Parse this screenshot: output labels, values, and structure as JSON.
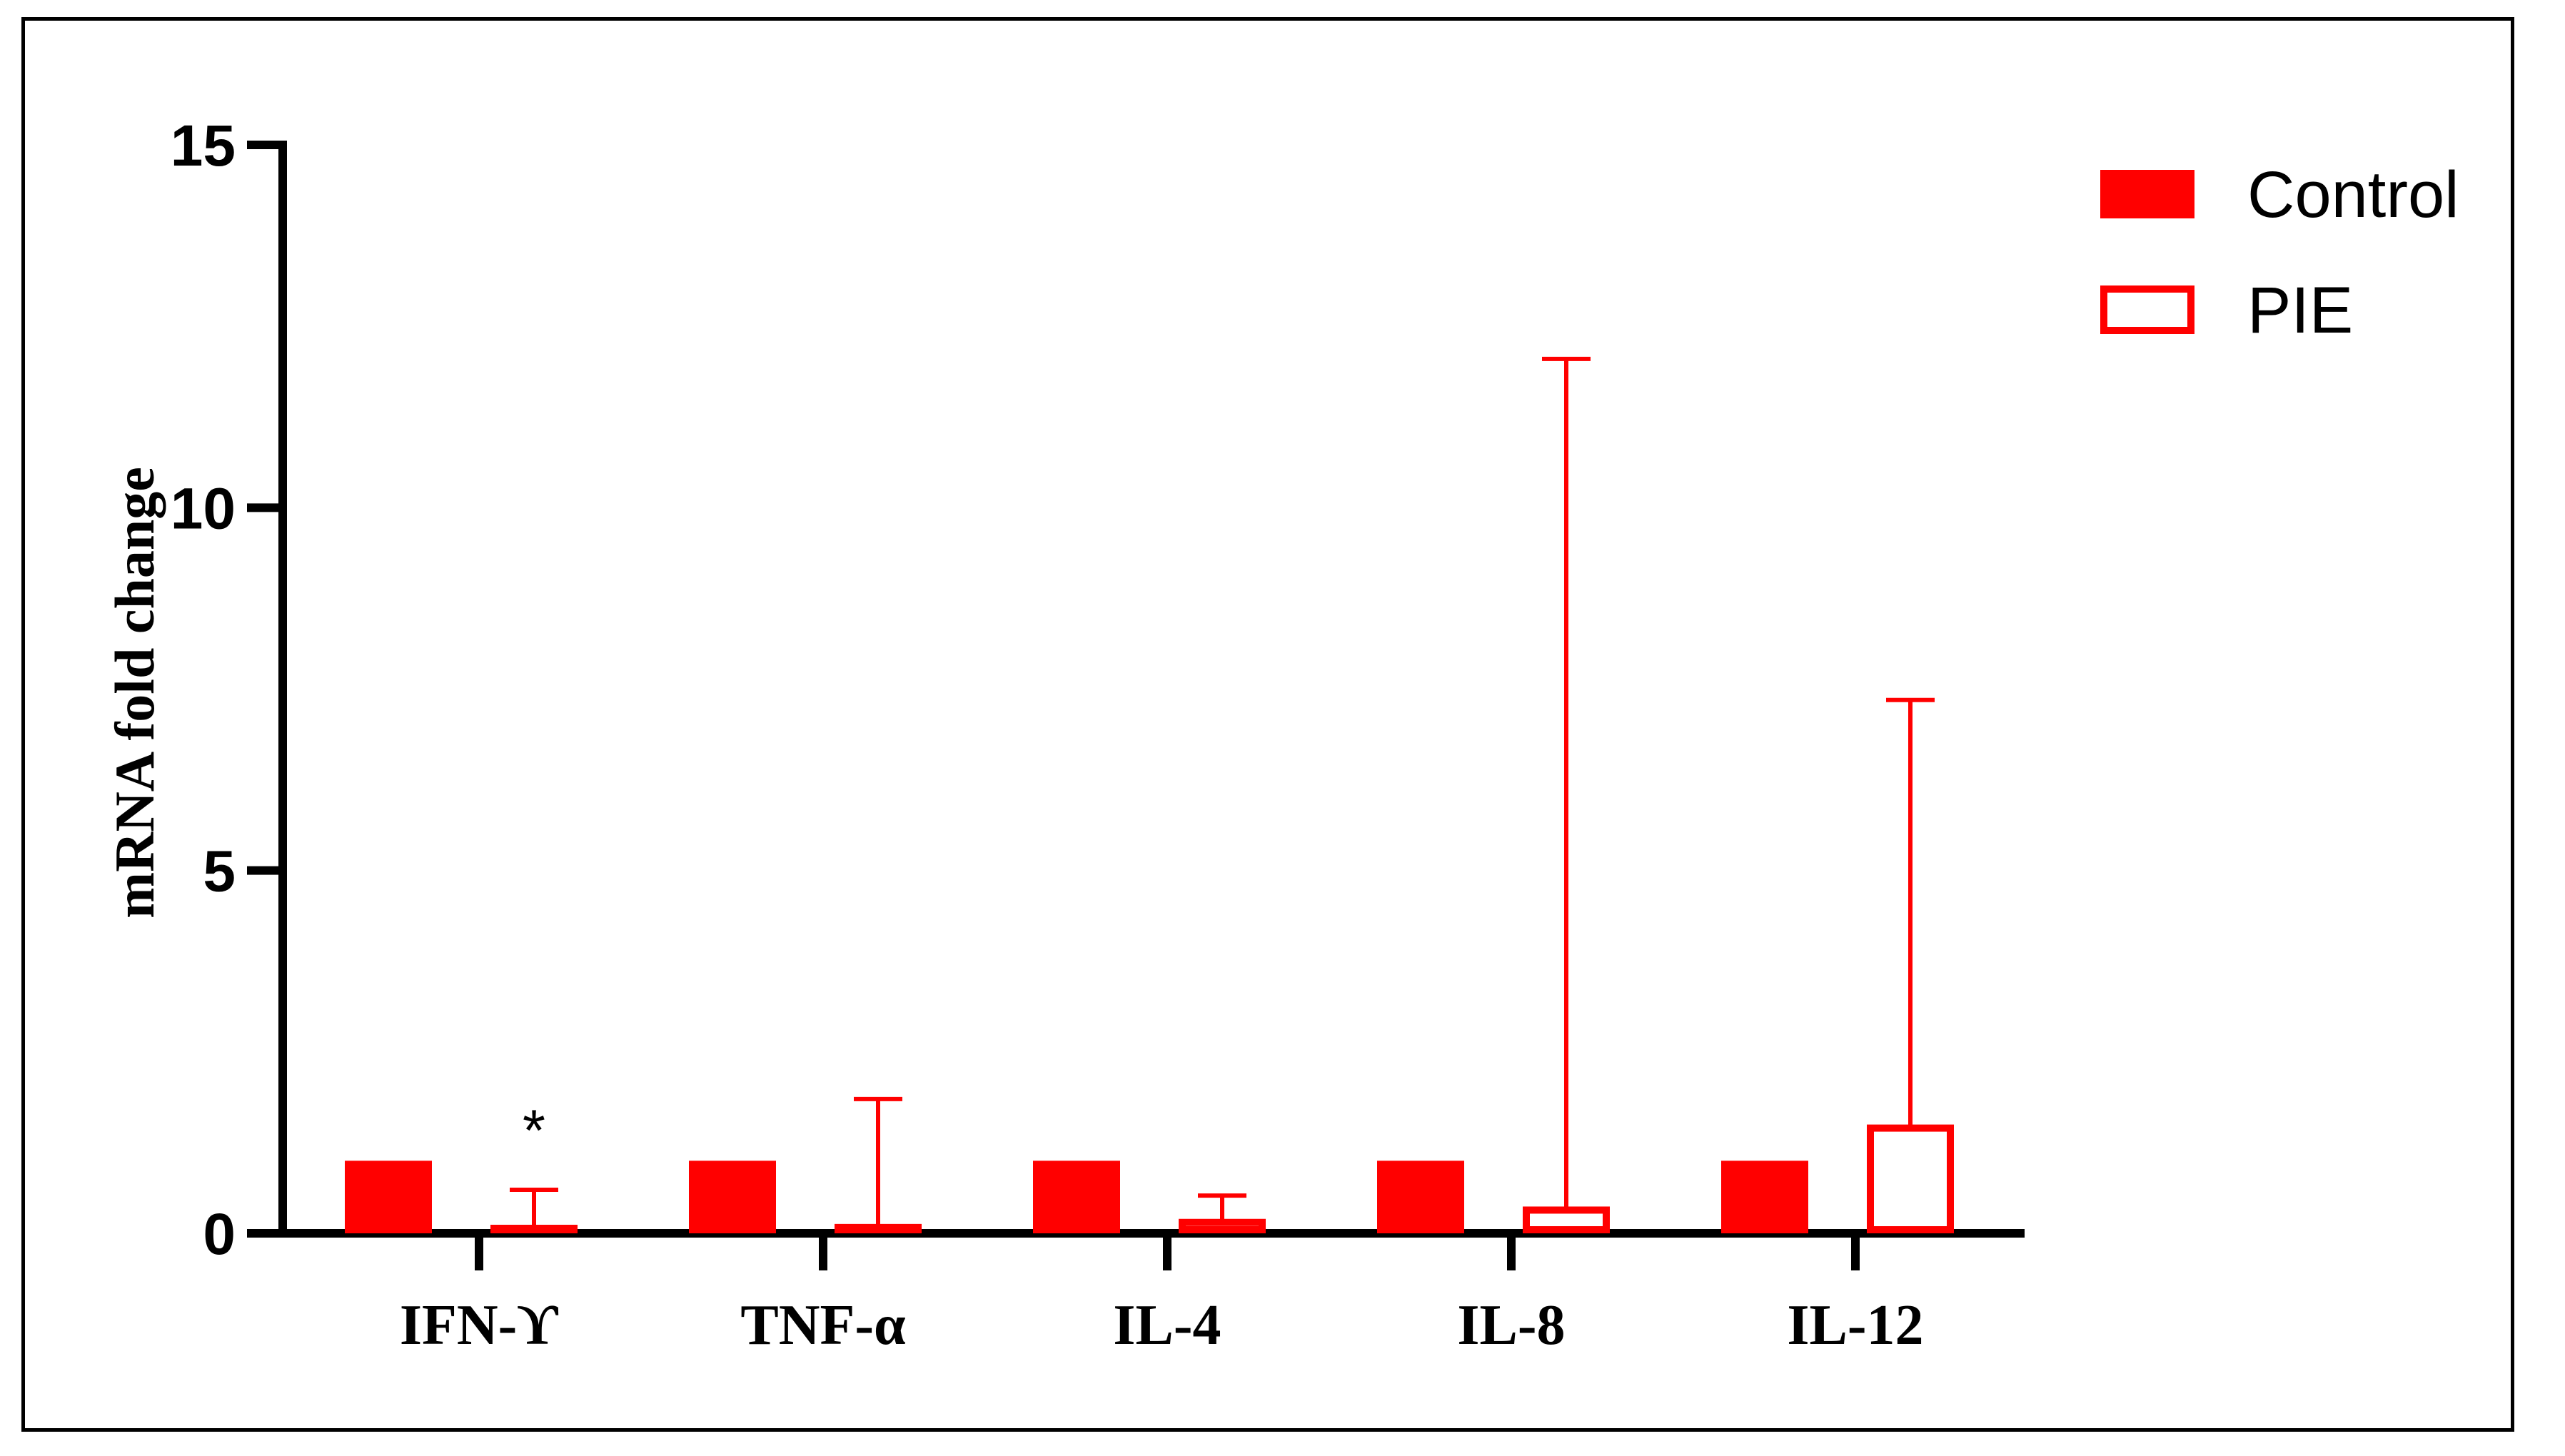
{
  "colors": {
    "series": "#ff0000",
    "axis": "#000000",
    "background": "#ffffff"
  },
  "chart_data": {
    "type": "bar",
    "title": "",
    "xlabel": "",
    "ylabel": "mRNA fold change",
    "ylim": [
      0,
      15
    ],
    "yticks": [
      "0",
      "5",
      "10",
      "15"
    ],
    "categories": [
      "IFN-ϒ",
      "TNF-α",
      "IL-4",
      "IL-8",
      "IL-12"
    ],
    "series": [
      {
        "name": "Control",
        "style": "filled",
        "values": [
          1,
          1,
          1,
          1,
          1
        ],
        "error_upper": [
          null,
          null,
          null,
          null,
          null
        ]
      },
      {
        "name": "PIE",
        "style": "outline",
        "values": [
          0.02,
          0.08,
          0.15,
          0.32,
          1.45
        ],
        "error_upper": [
          0.6,
          1.85,
          0.52,
          12.05,
          7.35
        ]
      }
    ],
    "annotations": [
      {
        "category": "IFN-ϒ",
        "series": "PIE",
        "text": "*"
      }
    ],
    "grid": false,
    "legend": {
      "position": "top-right"
    }
  }
}
